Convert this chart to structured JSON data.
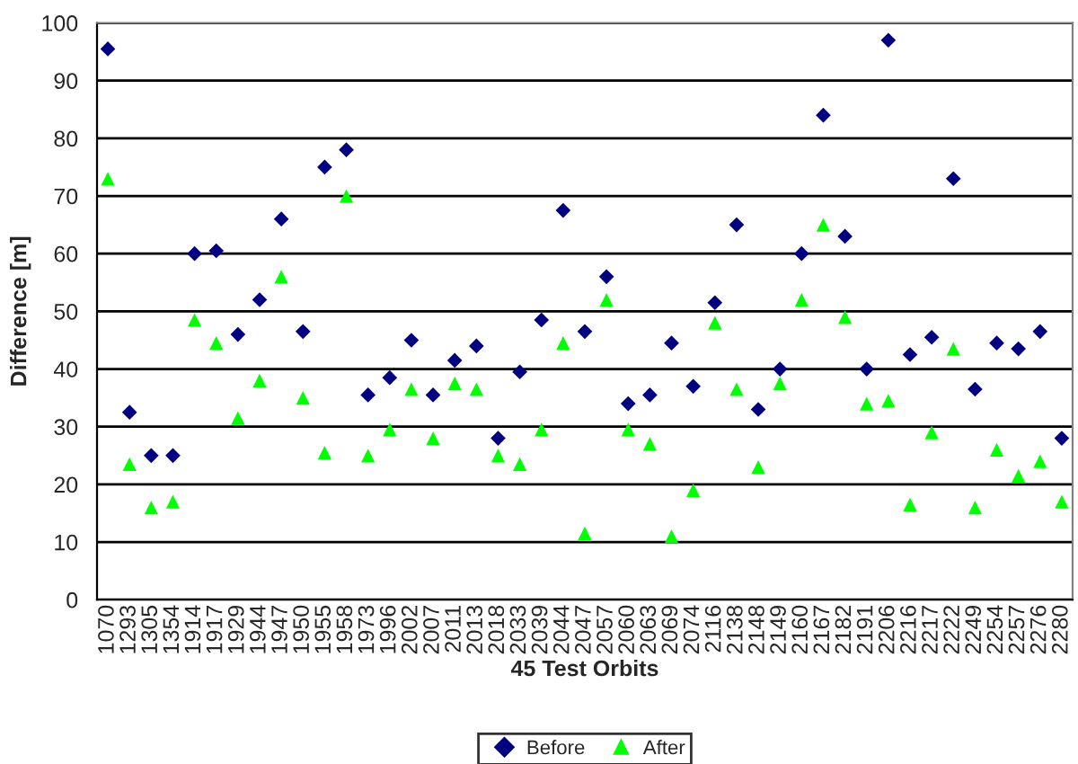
{
  "chart_data": {
    "type": "scatter",
    "xlabel": "45 Test Orbits",
    "ylabel": "Difference [m]",
    "categories": [
      "1070",
      "1293",
      "1305",
      "1354",
      "1914",
      "1917",
      "1929",
      "1944",
      "1947",
      "1950",
      "1955",
      "1958",
      "1973",
      "1996",
      "2002",
      "2007",
      "2011",
      "2013",
      "2018",
      "2033",
      "2039",
      "2044",
      "2047",
      "2057",
      "2060",
      "2063",
      "2069",
      "2074",
      "2116",
      "2138",
      "2148",
      "2149",
      "2160",
      "2167",
      "2182",
      "2191",
      "2206",
      "2216",
      "2217",
      "2222",
      "2249",
      "2254",
      "2257",
      "2276",
      "2280"
    ],
    "series": [
      {
        "name": "Before",
        "color": "#000080",
        "marker": "diamond",
        "values": [
          95.5,
          32.5,
          25,
          25,
          60,
          60.5,
          46,
          52,
          66,
          46.5,
          75,
          78,
          35.5,
          38.5,
          45,
          35.5,
          41.5,
          44,
          28,
          39.5,
          48.5,
          67.5,
          46.5,
          56,
          34,
          35.5,
          44.5,
          37,
          51.5,
          65,
          33,
          40,
          60,
          84,
          63,
          40,
          97,
          42.5,
          45.5,
          73,
          36.5,
          44.5,
          43.5,
          46.5,
          28
        ]
      },
      {
        "name": "After",
        "color": "#00ff00",
        "marker": "triangle",
        "values": [
          73,
          23.5,
          16,
          17,
          48.5,
          44.5,
          31.5,
          38,
          56,
          35,
          25.5,
          70,
          25,
          29.5,
          36.5,
          28,
          37.5,
          36.5,
          25,
          23.5,
          29.5,
          44.5,
          11.5,
          52,
          29.5,
          27,
          11,
          19,
          48,
          36.5,
          23,
          37.5,
          52,
          65,
          49,
          34,
          34.5,
          16.5,
          29,
          43.5,
          16,
          26,
          21.5,
          24,
          17
        ]
      }
    ],
    "ylim": [
      0,
      100
    ],
    "yticks": [
      0,
      10,
      20,
      30,
      40,
      50,
      60,
      70,
      80,
      90,
      100
    ],
    "grid": "y",
    "legend": "bottom"
  }
}
